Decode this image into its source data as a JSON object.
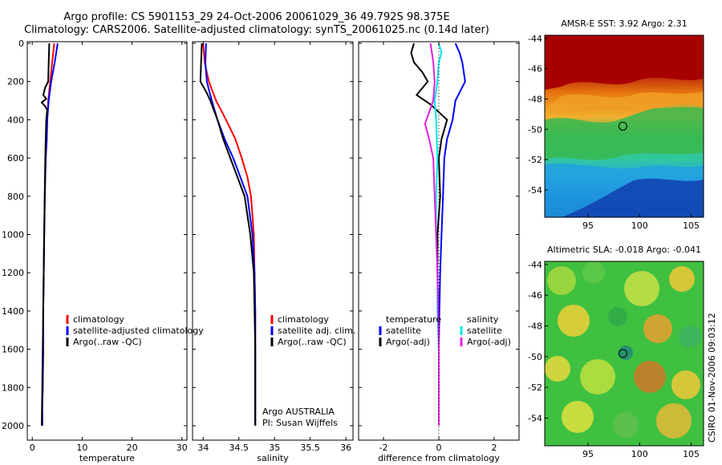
{
  "titles": {
    "line1": "Argo profile: CS 5901153_29 24-Oct-2006 20061029_36 49.792S 98.375E",
    "line2": "Climatology: CARS2006. Satellite-adjusted climatology: synTS_20061025.nc (0.14d later)"
  },
  "credit": "CSIRO 01-Nov-2006 09:03:12",
  "colors": {
    "red": "#ff0000",
    "blue": "#0000ff",
    "black": "#000000",
    "cyan": "#00e8e8",
    "magenta": "#e020e0"
  },
  "chart_data": [
    {
      "type": "line",
      "id": "temperature",
      "xlabel": "temperature",
      "xlim": [
        -1,
        31
      ],
      "ylim": [
        2050,
        0
      ],
      "xticks": [
        0,
        10,
        20,
        30
      ],
      "yticks": [
        0,
        200,
        400,
        600,
        800,
        1000,
        1200,
        1400,
        1600,
        1800,
        2000
      ],
      "legend": [
        "climatology",
        "satellite-adjusted climatology",
        "Argo(..raw -QC)"
      ],
      "series": [
        {
          "name": "climatology",
          "color": "red",
          "x": [
            4.4,
            4.0,
            3.6,
            3.2,
            3.0,
            2.9,
            2.7,
            2.6,
            2.5,
            2.4,
            2.3,
            2.2,
            2.2,
            2.1,
            2.0,
            2.0
          ],
          "y": [
            0,
            100,
            200,
            300,
            400,
            500,
            600,
            700,
            800,
            1000,
            1200,
            1400,
            1600,
            1800,
            1900,
            2000
          ]
        },
        {
          "name": "satellite-adjusted climatology",
          "color": "blue",
          "x": [
            5.1,
            4.5,
            3.8,
            3.3,
            3.0,
            2.9,
            2.7,
            2.6,
            2.5,
            2.4,
            2.3,
            2.2,
            2.2,
            2.1,
            2.0,
            2.0
          ],
          "y": [
            0,
            100,
            200,
            300,
            400,
            500,
            600,
            700,
            800,
            1000,
            1200,
            1400,
            1600,
            1800,
            1900,
            2000
          ]
        },
        {
          "name": "Argo(..raw -QC)",
          "color": "black",
          "x": [
            3.4,
            3.3,
            3.2,
            2.6,
            2.2,
            2.8,
            1.9,
            2.6,
            3.0,
            2.8,
            2.7,
            2.6,
            2.5,
            2.4,
            2.3,
            2.2,
            2.1,
            2.0,
            1.9
          ],
          "y": [
            0,
            100,
            200,
            230,
            270,
            290,
            310,
            330,
            350,
            400,
            500,
            600,
            800,
            1000,
            1200,
            1400,
            1600,
            1800,
            2000
          ]
        }
      ]
    },
    {
      "type": "line",
      "id": "salinity",
      "xlabel": "salinity",
      "xlim": [
        33.85,
        36.1
      ],
      "ylim": [
        2050,
        0
      ],
      "xticks": [
        34,
        34.5,
        35,
        35.5,
        36
      ],
      "legend": [
        "climatology",
        "satellite adj. clim.",
        "Argo(..raw -QC)"
      ],
      "annotation": [
        "Argo AUSTRALIA",
        "PI: Susan Wijffels"
      ],
      "series": [
        {
          "name": "climatology",
          "color": "red",
          "x": [
            34.0,
            34.02,
            34.08,
            34.18,
            34.32,
            34.45,
            34.54,
            34.62,
            34.67,
            34.71,
            34.72,
            34.73,
            34.73,
            34.73
          ],
          "y": [
            0,
            100,
            200,
            300,
            400,
            500,
            600,
            700,
            800,
            1000,
            1200,
            1400,
            1600,
            2000
          ]
        },
        {
          "name": "satellite adj. clim.",
          "color": "blue",
          "x": [
            34.04,
            34.03,
            34.05,
            34.12,
            34.2,
            34.3,
            34.42,
            34.52,
            34.62,
            34.69,
            34.72,
            34.73,
            34.73,
            34.73
          ],
          "y": [
            0,
            100,
            200,
            300,
            400,
            500,
            600,
            700,
            800,
            1000,
            1200,
            1400,
            1600,
            2000
          ]
        },
        {
          "name": "Argo(..raw -QC)",
          "color": "black",
          "x": [
            33.98,
            33.97,
            33.96,
            34.05,
            34.1,
            34.2,
            34.28,
            34.38,
            34.48,
            34.58,
            34.66,
            34.71,
            34.72,
            34.73,
            34.73
          ],
          "y": [
            0,
            100,
            200,
            260,
            300,
            400,
            500,
            600,
            700,
            800,
            1000,
            1200,
            1400,
            1600,
            2000
          ]
        }
      ]
    },
    {
      "type": "line",
      "id": "difference",
      "xlabel": "difference from climatology",
      "xlim": [
        -2.9,
        2.9
      ],
      "ylim": [
        2050,
        0
      ],
      "xticks": [
        -2,
        0,
        2
      ],
      "legend_groups": [
        {
          "title": "temperature",
          "items": [
            "satellite",
            "Argo(-adj)"
          ]
        },
        {
          "title": "salinity",
          "items": [
            "satellite",
            "Argo(-adj)"
          ]
        }
      ],
      "series": [
        {
          "name": "temperature satellite",
          "color": "blue",
          "x": [
            0.6,
            0.75,
            0.85,
            0.95,
            0.6,
            0.5,
            0.3,
            0.2,
            0.15,
            0.1,
            0.05,
            0.02,
            0.0,
            0.0
          ],
          "y": [
            0,
            50,
            100,
            200,
            300,
            400,
            500,
            600,
            800,
            1000,
            1200,
            1400,
            1600,
            2000
          ]
        },
        {
          "name": "temperature Argo(-adj)",
          "color": "black",
          "x": [
            -0.9,
            -1.0,
            -0.9,
            -0.6,
            -0.4,
            -0.8,
            -0.3,
            0.3,
            0.1,
            0.0,
            0.05,
            -0.05,
            -0.05,
            0.0,
            0.0
          ],
          "y": [
            0,
            50,
            100,
            150,
            200,
            270,
            320,
            400,
            500,
            600,
            800,
            1000,
            1200,
            1600,
            2000
          ]
        },
        {
          "name": "salinity satellite",
          "color": "cyan",
          "x": [
            0.0,
            0.1,
            0.0,
            -0.05,
            -0.15,
            -0.1,
            -0.05,
            -0.1,
            -0.1,
            -0.05,
            -0.05,
            0.0,
            0.0
          ],
          "y": [
            0,
            50,
            100,
            200,
            300,
            400,
            600,
            800,
            1000,
            1200,
            1400,
            1600,
            2000
          ]
        },
        {
          "name": "salinity Argo(-adj)",
          "color": "magenta",
          "x": [
            -0.3,
            -0.2,
            -0.15,
            -0.2,
            -0.5,
            -0.35,
            -0.2,
            -0.15,
            -0.1,
            -0.05,
            0.0,
            0.0
          ],
          "y": [
            0,
            100,
            200,
            300,
            420,
            500,
            600,
            800,
            1000,
            1200,
            1600,
            2000
          ]
        }
      ]
    },
    {
      "type": "heatmap",
      "id": "sst-map",
      "title": "AMSR-E SST: 3.92 Argo: 2.31",
      "xlim": [
        90.8,
        106.2
      ],
      "ylim": [
        -55.8,
        -43.8
      ],
      "xticks": [
        95,
        100,
        105
      ],
      "yticks": [
        -44,
        -46,
        -48,
        -50,
        -52,
        -54
      ],
      "float_marker": {
        "lon": 98.375,
        "lat": -49.792
      },
      "description_colors": [
        "dark red north",
        "orange",
        "green",
        "cyan",
        "blue south"
      ]
    },
    {
      "type": "heatmap",
      "id": "sla-map",
      "title": "Altimetric SLA: -0.018 Argo: -0.041",
      "xlim": [
        90.8,
        106.2
      ],
      "ylim": [
        -55.8,
        -43.8
      ],
      "xticks": [
        95,
        100,
        105
      ],
      "yticks": [
        -44,
        -46,
        -48,
        -50,
        -52,
        -54
      ],
      "float_marker": {
        "lon": 98.375,
        "lat": -49.792
      }
    }
  ]
}
